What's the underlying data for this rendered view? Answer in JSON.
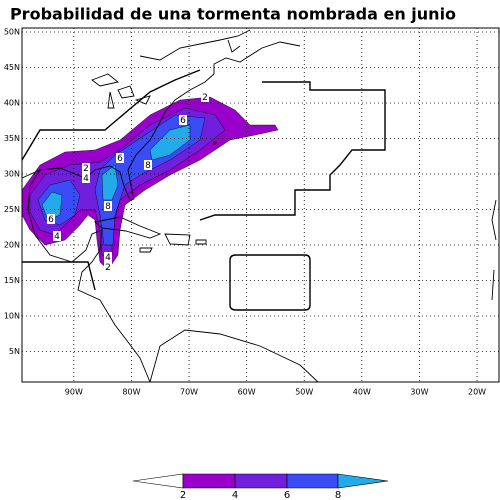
{
  "title": "Probabilidad de una tormenta nombrada en junio",
  "lon_ticks": [
    {
      "value": -90,
      "label": "90W"
    },
    {
      "value": -80,
      "label": "80W"
    },
    {
      "value": -70,
      "label": "70W"
    },
    {
      "value": -60,
      "label": "60W"
    },
    {
      "value": -50,
      "label": "50W"
    },
    {
      "value": -40,
      "label": "40W"
    },
    {
      "value": -30,
      "label": "30W"
    },
    {
      "value": -20,
      "label": "20W"
    }
  ],
  "lat_ticks": [
    {
      "value": 5,
      "label": "5N"
    },
    {
      "value": 10,
      "label": "10N"
    },
    {
      "value": 15,
      "label": "15N"
    },
    {
      "value": 20,
      "label": "20N"
    },
    {
      "value": 25,
      "label": "25N"
    },
    {
      "value": 30,
      "label": "30N"
    },
    {
      "value": 35,
      "label": "35N"
    },
    {
      "value": 40,
      "label": "40N"
    },
    {
      "value": 45,
      "label": "45N"
    },
    {
      "value": 50,
      "label": "50N"
    }
  ],
  "levels": [
    2,
    4,
    6,
    8
  ],
  "colors": [
    "#9a00cc",
    "#7020dd",
    "#3a4cf5",
    "#22aaea"
  ],
  "contour_labels": [
    2,
    6,
    6,
    8,
    2,
    4,
    6,
    8,
    4,
    4,
    2
  ]
}
